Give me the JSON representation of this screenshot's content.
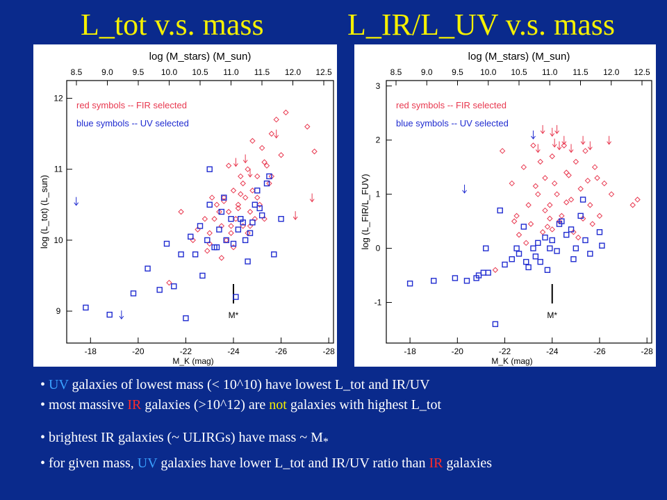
{
  "slide": {
    "title_left": "L_tot v.s. mass",
    "title_right": "L_IR/L_UV v.s. mass"
  },
  "colors": {
    "background": "#0a2a8c",
    "title": "#f5f000",
    "uv": "#3aa0ff",
    "ir": "#ff2a2a",
    "highlight": "#f5f000",
    "red_marker": "#e8384f",
    "blue_marker": "#1f2bd0"
  },
  "bullets": [
    {
      "parts": [
        {
          "text": "UV",
          "style": "uv"
        },
        {
          "text": " galaxies of lowest mass (< 10^10) have lowest L_tot and IR/UV",
          "style": "plain"
        }
      ]
    },
    {
      "parts": [
        {
          "text": "most massive ",
          "style": "plain"
        },
        {
          "text": "IR",
          "style": "ir"
        },
        {
          "text": " galaxies (>10^12) are ",
          "style": "plain"
        },
        {
          "text": "not",
          "style": "not"
        },
        {
          "text": " galaxies with highest L_tot",
          "style": "plain"
        }
      ]
    },
    {
      "parts": [
        {
          "text": "brightest IR galaxies (~ ULIRGs) have mass ~ M",
          "style": "plain"
        },
        {
          "text": "*",
          "style": "plain"
        }
      ]
    },
    {
      "parts": [
        {
          "text": "for given mass, ",
          "style": "plain"
        },
        {
          "text": "UV",
          "style": "uv"
        },
        {
          "text": " galaxies have lower L_tot and IR/UV ratio than ",
          "style": "plain"
        },
        {
          "text": "IR",
          "style": "ir"
        },
        {
          "text": " galaxies",
          "style": "plain"
        }
      ]
    }
  ],
  "chart_data": [
    {
      "type": "scatter",
      "top_axis_label": "log (M_stars) (M_sun)",
      "top_ticks": [
        "8.5",
        "9.0",
        "9.5",
        "10.0",
        "10.5",
        "11.0",
        "11.5",
        "12.0",
        "12.5"
      ],
      "xlabel": "M_K (mag)",
      "ylabel": "log (L_tot) (L_sun)",
      "xlim": [
        -17,
        -28.2
      ],
      "ylim": [
        8.55,
        12.25
      ],
      "xticks": [
        -18,
        -20,
        -22,
        -24,
        -26,
        -28
      ],
      "yticks": [
        9,
        10,
        11,
        12
      ],
      "legend": [
        "red symbols -- FIR selected",
        "blue symbols -- UV selected"
      ],
      "mstar_label": "M*",
      "mstar_x": -24,
      "series": [
        {
          "name": "red symbols -- FIR selected",
          "marker": "diamond",
          "x": [
            -21.8,
            -22.3,
            -22.5,
            -23.0,
            -23.2,
            -23.3,
            -23.5,
            -23.6,
            -23.7,
            -23.8,
            -23.9,
            -24.0,
            -24.1,
            -24.2,
            -24.3,
            -24.4,
            -24.5,
            -24.6,
            -24.7,
            -24.8,
            -24.9,
            -25.0,
            -25.1,
            -25.2,
            -25.3,
            -25.5,
            -25.6,
            -25.8,
            -26.0,
            -26.2,
            -27.1,
            -27.4,
            -22.8,
            -23.1,
            -23.4,
            -23.9,
            -24.2,
            -24.6,
            -25.0,
            -25.3,
            -23.0,
            -23.6,
            -24.4,
            -24.8,
            -25.4,
            -24.0,
            -23.5,
            -22.9,
            -24.7,
            -25.6,
            -23.8,
            -24.3,
            -21.3
          ],
          "y": [
            10.4,
            10.0,
            10.15,
            10.1,
            10.3,
            10.5,
            10.2,
            10.6,
            10.0,
            10.4,
            10.2,
            10.7,
            10.3,
            10.5,
            10.9,
            10.2,
            10.6,
            11.0,
            10.4,
            10.7,
            10.3,
            10.9,
            10.5,
            11.3,
            11.1,
            10.8,
            11.5,
            11.7,
            11.2,
            11.8,
            11.6,
            11.25,
            10.3,
            10.6,
            10.4,
            10.1,
            10.45,
            10.1,
            10.6,
            10.3,
            9.95,
            10.55,
            10.8,
            11.4,
            11.05,
            9.9,
            9.75,
            9.85,
            10.2,
            10.9,
            11.05,
            10.65,
            9.4
          ]
        },
        {
          "name": "blue symbols -- UV selected",
          "marker": "square",
          "x": [
            -17.8,
            -18.8,
            -19.8,
            -20.4,
            -20.9,
            -21.5,
            -21.8,
            -22.0,
            -22.4,
            -22.6,
            -22.9,
            -23.0,
            -23.2,
            -23.4,
            -23.5,
            -23.7,
            -23.9,
            -24.0,
            -24.2,
            -24.4,
            -24.5,
            -24.7,
            -24.9,
            -25.0,
            -25.2,
            -25.4,
            -25.7,
            -26.0,
            -23.0,
            -23.6,
            -24.3,
            -24.8,
            -25.5,
            -21.2,
            -22.2,
            -23.3,
            -24.6,
            -22.7,
            -24.1,
            -25.1
          ],
          "y": [
            9.05,
            8.95,
            9.25,
            9.6,
            9.3,
            9.35,
            9.8,
            8.9,
            9.8,
            10.2,
            10.0,
            10.5,
            9.9,
            10.15,
            10.4,
            10.0,
            10.3,
            9.95,
            10.15,
            10.25,
            10.0,
            10.1,
            10.5,
            10.7,
            10.35,
            10.8,
            9.8,
            10.3,
            11.0,
            10.6,
            10.3,
            10.25,
            10.9,
            9.95,
            10.05,
            9.9,
            9.7,
            9.5,
            9.2,
            10.45
          ]
        },
        {
          "name": "",
          "marker": "arrow",
          "x": [
            -17.4,
            -19.3,
            -24.1,
            -24.5,
            -24.7,
            -25.8,
            -26.6,
            -27.3
          ],
          "y": [
            10.55,
            8.95,
            11.1,
            11.15,
            10.95,
            11.5,
            10.35,
            10.6
          ]
        }
      ]
    },
    {
      "type": "scatter",
      "top_axis_label": "log (M_stars) (M_sun)",
      "top_ticks": [
        "8.5",
        "9.0",
        "9.5",
        "10.0",
        "10.5",
        "11.0",
        "11.5",
        "12.0",
        "12.5"
      ],
      "xlabel": "M_K (mag)",
      "ylabel": "log (L_FIR/L_FUV)",
      "xlim": [
        -17,
        -28.2
      ],
      "ylim": [
        -1.75,
        3.1
      ],
      "xticks": [
        -18,
        -20,
        -22,
        -24,
        -26,
        -28
      ],
      "yticks": [
        -1,
        0,
        1,
        2,
        3
      ],
      "legend": [
        "red symbols -- FIR selected",
        "blue symbols -- UV selected"
      ],
      "mstar_label": "M*",
      "mstar_x": -24,
      "series": [
        {
          "name": "red symbols -- FIR selected",
          "marker": "diamond",
          "x": [
            -21.9,
            -22.3,
            -22.5,
            -22.8,
            -23.0,
            -23.2,
            -23.4,
            -23.6,
            -23.7,
            -23.9,
            -24.0,
            -24.1,
            -24.3,
            -24.5,
            -24.6,
            -24.8,
            -25.0,
            -25.2,
            -25.4,
            -25.6,
            -25.8,
            -25.9,
            -26.2,
            -26.5,
            -27.4,
            -27.6,
            -22.6,
            -23.1,
            -23.5,
            -23.8,
            -24.2,
            -24.4,
            -24.7,
            -24.9,
            -25.3,
            -25.5,
            -23.3,
            -23.9,
            -24.6,
            -25.1,
            -22.9,
            -24.0,
            -22.4,
            -23.7,
            -25.7,
            -26.0,
            -21.6
          ],
          "y": [
            1.8,
            1.2,
            0.6,
            1.5,
            0.8,
            1.9,
            1.0,
            0.3,
            1.3,
            0.8,
            1.7,
            1.2,
            0.5,
            1.9,
            1.4,
            0.9,
            1.6,
            1.1,
            1.8,
            0.8,
            1.5,
            1.3,
            1.2,
            1.0,
            0.8,
            0.9,
            0.25,
            0.45,
            1.6,
            0.4,
            1.0,
            0.6,
            1.35,
            0.3,
            0.55,
            1.25,
            1.15,
            0.55,
            0.85,
            0.2,
            0.1,
            0.35,
            0.5,
            0.7,
            0.45,
            0.6,
            -0.4
          ]
        },
        {
          "name": "blue symbols -- UV selected",
          "marker": "square",
          "x": [
            -18.0,
            -19.0,
            -19.9,
            -20.4,
            -20.9,
            -21.3,
            -21.6,
            -21.8,
            -22.0,
            -22.3,
            -22.6,
            -22.8,
            -23.0,
            -23.2,
            -23.4,
            -23.5,
            -23.7,
            -23.9,
            -24.0,
            -24.2,
            -24.4,
            -24.6,
            -24.8,
            -25.0,
            -25.2,
            -25.4,
            -25.6,
            -26.0,
            -21.2,
            -22.5,
            -23.3,
            -24.3,
            -25.3,
            -22.9,
            -23.8,
            -24.9,
            -26.1,
            -21.1,
            -20.8
          ],
          "y": [
            -0.65,
            -0.6,
            -0.55,
            -0.6,
            -0.5,
            -0.45,
            -1.4,
            0.7,
            -0.3,
            -0.2,
            -0.1,
            0.4,
            -0.35,
            0.0,
            0.1,
            -0.25,
            0.2,
            0.0,
            0.15,
            -0.05,
            0.5,
            0.25,
            0.35,
            0.0,
            0.6,
            0.15,
            -0.1,
            0.3,
            0.0,
            0.0,
            -0.15,
            0.45,
            0.9,
            -0.25,
            -0.4,
            -0.2,
            0.05,
            -0.45,
            -0.55
          ]
        },
        {
          "name": "",
          "marker": "arrow",
          "x": [
            -20.3,
            -23.2,
            -23.6,
            -24.0,
            -24.1,
            -24.3,
            -24.5,
            -24.8,
            -25.3,
            -25.6,
            -26.4,
            -23.4,
            -24.2
          ],
          "y": [
            1.1,
            2.1,
            2.2,
            2.15,
            1.95,
            1.9,
            2.0,
            1.85,
            2.0,
            1.9,
            2.0,
            1.85,
            2.2
          ]
        }
      ]
    }
  ]
}
